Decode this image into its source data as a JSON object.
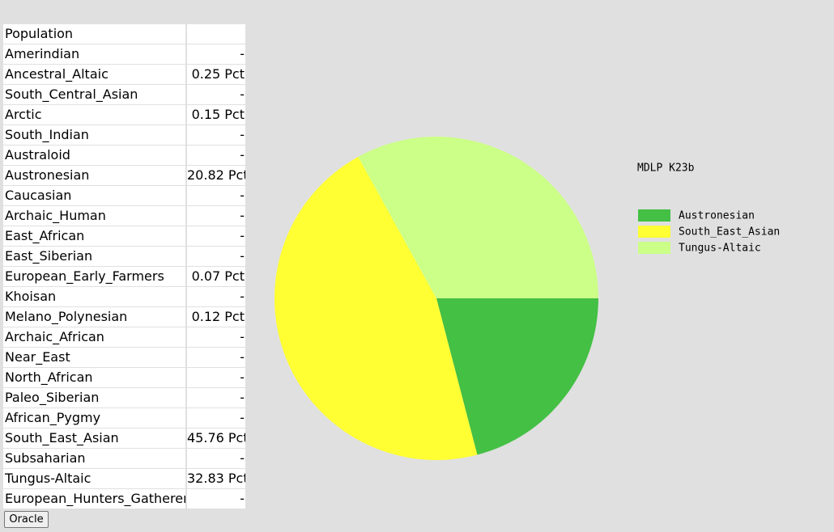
{
  "table": {
    "header": "Population",
    "rows": [
      [
        "Amerindian",
        "-"
      ],
      [
        "Ancestral_Altaic",
        "0.25 Pct"
      ],
      [
        "South_Central_Asian",
        "-"
      ],
      [
        "Arctic",
        "0.15 Pct"
      ],
      [
        "South_Indian",
        "-"
      ],
      [
        "Australoid",
        "-"
      ],
      [
        "Austronesian",
        "20.82 Pct"
      ],
      [
        "Caucasian",
        "-"
      ],
      [
        "Archaic_Human",
        "-"
      ],
      [
        "East_African",
        "-"
      ],
      [
        "East_Siberian",
        "-"
      ],
      [
        "European_Early_Farmers",
        "0.07 Pct"
      ],
      [
        "Khoisan",
        "-"
      ],
      [
        "Melano_Polynesian",
        "0.12 Pct"
      ],
      [
        "Archaic_African",
        "-"
      ],
      [
        "Near_East",
        "-"
      ],
      [
        "North_African",
        "-"
      ],
      [
        "Paleo_Siberian",
        "-"
      ],
      [
        "African_Pygmy",
        "-"
      ],
      [
        "South_East_Asian",
        "45.76 Pct"
      ],
      [
        "Subsaharian",
        "-"
      ],
      [
        "Tungus-Altaic",
        "32.83 Pct"
      ],
      [
        "European_Hunters_Gatherers",
        "-"
      ]
    ]
  },
  "button": "Oracle",
  "chart_data": {
    "type": "pie",
    "title": "MDLP K23b",
    "categories": [
      "Austronesian",
      "South_East_Asian",
      "Tungus-Altaic"
    ],
    "values": [
      20.82,
      45.76,
      32.83
    ],
    "colors": [
      "#44c044",
      "#ffff33",
      "#ccff88"
    ]
  }
}
